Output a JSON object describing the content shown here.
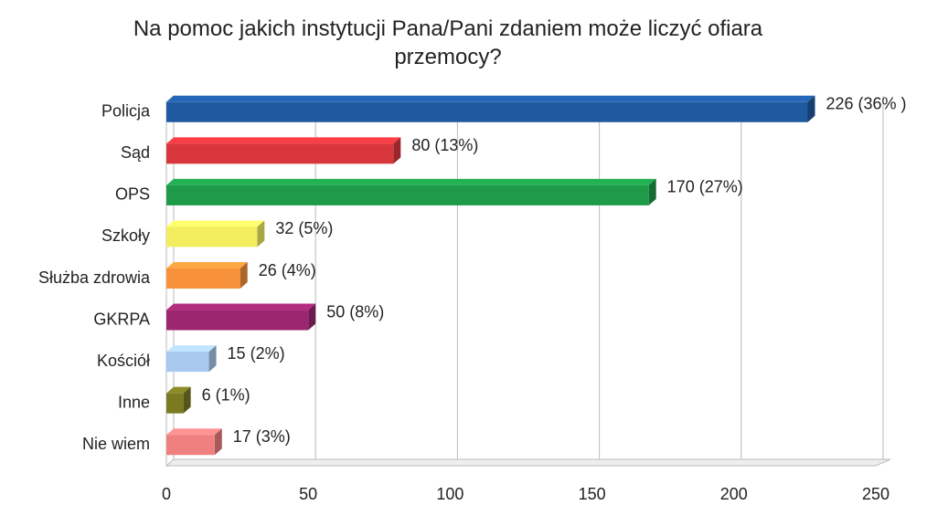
{
  "chart_data": {
    "type": "bar",
    "orientation": "horizontal",
    "title": "Na pomoc jakich instytucji Pana/Pani zdaniem może liczyć ofiara przemocy?",
    "categories": [
      "Policja",
      "Sąd",
      "OPS",
      "Szkoły",
      "Służba zdrowia",
      "GKRPA",
      "Kościół",
      "Inne",
      "Nie wiem"
    ],
    "values": [
      226,
      80,
      170,
      32,
      26,
      50,
      15,
      6,
      17
    ],
    "value_labels": [
      "226 (36% )",
      "80 (13%)",
      "170 (27%)",
      "32 (5%)",
      "26 (4%)",
      "50 (8%)",
      "15 (2%)",
      "6 (1%)",
      "17 (3%)"
    ],
    "colors": [
      "#1f5aa0",
      "#d9363e",
      "#1e9a48",
      "#f2ee60",
      "#f7923a",
      "#9c2770",
      "#a8c8ee",
      "#7b7a22",
      "#f08080"
    ],
    "xlim": [
      0,
      250
    ],
    "xticks": [
      0,
      50,
      100,
      150,
      200,
      250
    ],
    "grid": true
  }
}
